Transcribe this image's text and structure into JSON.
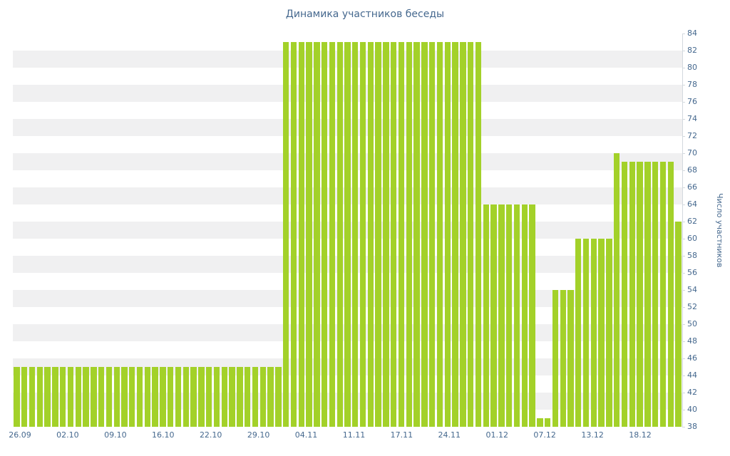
{
  "chart": {
    "colors": {
      "bar": "#a3d129",
      "axis_text": "#45688e",
      "stripe": "#f0f0f1",
      "axis_line": "#d3d9de",
      "background": "#ffffff"
    }
  },
  "chart_data": {
    "type": "bar",
    "title": "Динамика участников беседы",
    "xlabel": "",
    "ylabel": "Число участников",
    "ylim": [
      38,
      84
    ],
    "ytick_step": 2,
    "grid": "horizontal-stripes",
    "legend": "none",
    "y_axis_position": "right",
    "x_labels": [
      "26.09",
      "02.10",
      "09.10",
      "16.10",
      "22.10",
      "29.10",
      "04.11",
      "11.11",
      "17.11",
      "24.11",
      "01.12",
      "07.12",
      "13.12",
      "18.12"
    ],
    "values": [
      45,
      45,
      45,
      45,
      45,
      45,
      45,
      45,
      45,
      45,
      45,
      45,
      45,
      45,
      45,
      45,
      45,
      45,
      45,
      45,
      45,
      45,
      45,
      45,
      45,
      45,
      45,
      45,
      45,
      45,
      45,
      45,
      45,
      45,
      45,
      83,
      83,
      83,
      83,
      83,
      83,
      83,
      83,
      83,
      83,
      83,
      83,
      83,
      83,
      83,
      83,
      83,
      83,
      83,
      83,
      83,
      83,
      83,
      83,
      83,
      83,
      64,
      64,
      64,
      64,
      64,
      64,
      64,
      39,
      39,
      54,
      54,
      54,
      60,
      60,
      60,
      60,
      60,
      70,
      69,
      69,
      69,
      69,
      69,
      69,
      69,
      62
    ]
  }
}
